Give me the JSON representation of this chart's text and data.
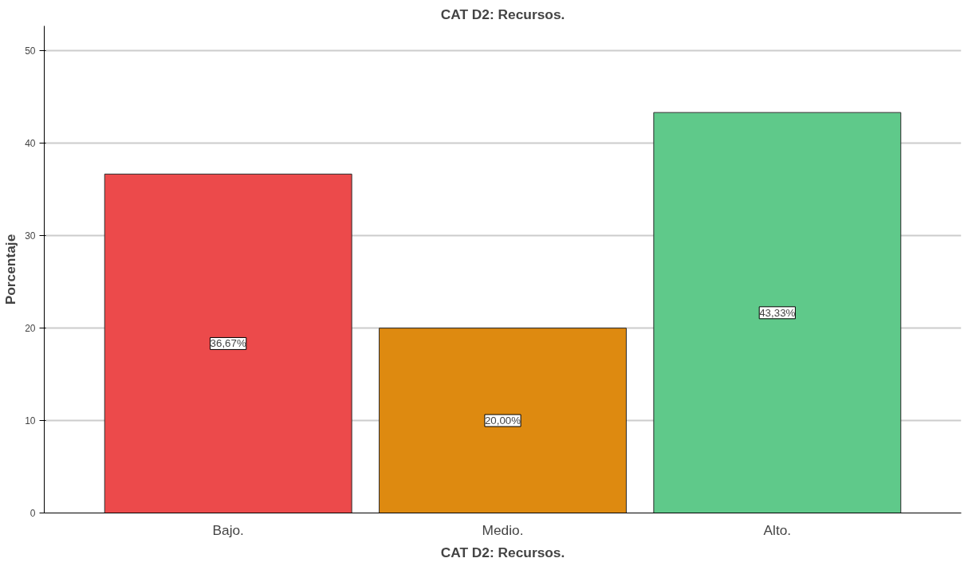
{
  "chart_data": {
    "type": "bar",
    "title": "CAT D2: Recursos.",
    "xlabel": "CAT D2: Recursos.",
    "ylabel": "Porcentaje",
    "categories": [
      "Bajo.",
      "Medio.",
      "Alto."
    ],
    "values": [
      36.67,
      20.0,
      43.33
    ],
    "colors": [
      "#ec4a4b",
      "#de8a10",
      "#5fc98a"
    ],
    "value_labels": [
      "36,67%",
      "20,00%",
      "43,33%"
    ],
    "ylim": [
      0,
      52.7
    ],
    "yticks": [
      0,
      10,
      20,
      30,
      40,
      50
    ],
    "grid": "y"
  }
}
